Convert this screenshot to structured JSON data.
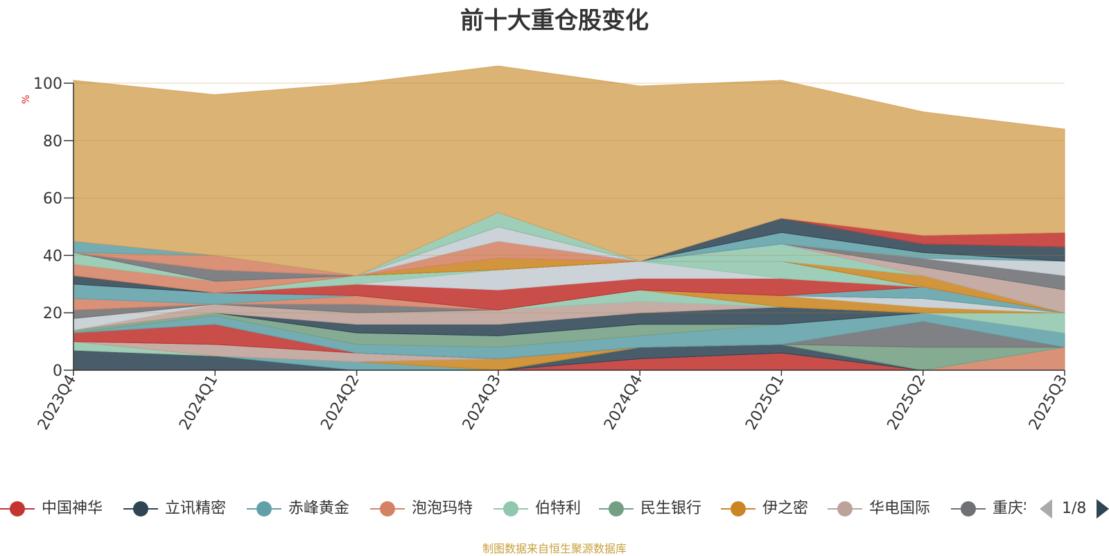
{
  "title": "前十大重仓股变化",
  "source": "制图数据来自恒生聚源数据库",
  "pager": {
    "label": "1/8"
  },
  "chart_data": {
    "type": "area",
    "stacked": true,
    "title": "前十大重仓股变化",
    "ylabel": "%",
    "ylim": [
      0,
      100
    ],
    "yticks": [
      "0",
      "20",
      "40",
      "60",
      "80",
      "100"
    ],
    "categories": [
      "2023Q4",
      "2024Q1",
      "2024Q2",
      "2024Q3",
      "2024Q4",
      "2025Q1",
      "2025Q2",
      "2025Q3"
    ],
    "grid": true,
    "legend_position": "bottom",
    "legend_visible": [
      "中国神华",
      "立讯精密",
      "赤峰黄金",
      "泡泡玛特",
      "伯特利",
      "民生银行",
      "伊之密",
      "华电国际",
      "重庆农商行"
    ],
    "series": [
      {
        "name": "中国神华",
        "color": "#c23531",
        "values": [
          0,
          0,
          0,
          0,
          4,
          6,
          0,
          0
        ]
      },
      {
        "name": "立讯精密",
        "color": "#2f4554",
        "values": [
          7,
          5,
          0,
          0,
          4,
          3,
          0,
          0
        ]
      },
      {
        "name": "赤峰黄金",
        "color": "#61a0a8",
        "values": [
          0,
          0,
          3,
          0,
          0,
          0,
          0,
          0
        ]
      },
      {
        "name": "泡泡玛特",
        "color": "#d48265",
        "values": [
          0,
          0,
          0,
          0,
          0,
          0,
          0,
          8
        ]
      },
      {
        "name": "伯特利",
        "color": "#91c7ae",
        "values": [
          3,
          0,
          0,
          0,
          0,
          0,
          0,
          0
        ]
      },
      {
        "name": "民生银行",
        "color": "#749f83",
        "values": [
          0,
          0,
          0,
          0,
          0,
          0,
          8,
          0
        ]
      },
      {
        "name": "伊之密",
        "color": "#ca8622",
        "values": [
          0,
          0,
          0,
          4,
          0,
          0,
          0,
          0
        ]
      },
      {
        "name": "华电国际",
        "color": "#bda29a",
        "values": [
          0,
          4,
          3,
          0,
          0,
          0,
          0,
          0
        ]
      },
      {
        "name": "重庆农商行",
        "color": "#6e7074",
        "values": [
          0,
          0,
          0,
          0,
          0,
          0,
          9,
          0
        ]
      },
      {
        "name": "",
        "color": "#c23531",
        "values": [
          3,
          7,
          0,
          0,
          0,
          0,
          0,
          0
        ]
      },
      {
        "name": "",
        "color": "#61a0a8",
        "values": [
          0,
          3,
          3,
          4,
          4,
          7,
          3,
          5
        ]
      },
      {
        "name": "",
        "color": "#749f83",
        "values": [
          1,
          1,
          4,
          4,
          4,
          0,
          0,
          0
        ]
      },
      {
        "name": "",
        "color": "#2f4554",
        "values": [
          0,
          0,
          3,
          4,
          4,
          6,
          0,
          0
        ]
      },
      {
        "name": "",
        "color": "#bda29a",
        "values": [
          0,
          3,
          4,
          5,
          4,
          0,
          0,
          0
        ]
      },
      {
        "name": "",
        "color": "#91c7ae",
        "values": [
          0,
          0,
          0,
          0,
          4,
          0,
          0,
          7
        ]
      },
      {
        "name": "",
        "color": "#ca8622",
        "values": [
          0,
          0,
          0,
          0,
          0,
          4,
          2,
          0
        ]
      },
      {
        "name": "",
        "color": "#c4ccd3",
        "values": [
          4,
          0,
          0,
          0,
          0,
          0,
          3,
          0
        ]
      },
      {
        "name": "",
        "color": "#6e7074",
        "values": [
          3,
          0,
          3,
          0,
          0,
          0,
          0,
          0
        ]
      },
      {
        "name": "",
        "color": "#d48265",
        "values": [
          4,
          0,
          3,
          0,
          0,
          0,
          0,
          0
        ]
      },
      {
        "name": "",
        "color": "#61a0a8",
        "values": [
          5,
          4,
          0,
          0,
          0,
          0,
          4,
          0
        ]
      },
      {
        "name": "",
        "color": "#c23531",
        "values": [
          0,
          0,
          4,
          7,
          4,
          6,
          0,
          0
        ]
      },
      {
        "name": "",
        "color": "#c4ccd3",
        "values": [
          0,
          0,
          0,
          7,
          6,
          0,
          0,
          0
        ]
      },
      {
        "name": "",
        "color": "#91c7ae",
        "values": [
          0,
          0,
          3,
          0,
          0,
          6,
          0,
          0
        ]
      },
      {
        "name": "",
        "color": "#2f4554",
        "values": [
          3,
          0,
          0,
          0,
          0,
          0,
          0,
          0
        ]
      },
      {
        "name": "",
        "color": "#ca8622",
        "values": [
          0,
          0,
          0,
          4,
          0,
          0,
          4,
          0
        ]
      },
      {
        "name": "",
        "color": "#d48265",
        "values": [
          4,
          4,
          0,
          6,
          0,
          0,
          0,
          0
        ]
      },
      {
        "name": "",
        "color": "#91c7ae",
        "values": [
          4,
          0,
          0,
          0,
          0,
          6,
          0,
          0
        ]
      },
      {
        "name": "",
        "color": "#bda29a",
        "values": [
          0,
          0,
          0,
          0,
          0,
          0,
          3,
          8
        ]
      },
      {
        "name": "",
        "color": "#6e7074",
        "values": [
          0,
          4,
          0,
          0,
          0,
          0,
          3,
          5
        ]
      },
      {
        "name": "",
        "color": "#c4ccd3",
        "values": [
          0,
          0,
          0,
          5,
          0,
          0,
          0,
          5
        ]
      },
      {
        "name": "",
        "color": "#d48265",
        "values": [
          0,
          5,
          0,
          0,
          0,
          0,
          0,
          0
        ]
      },
      {
        "name": "",
        "color": "#61a0a8",
        "values": [
          4,
          0,
          0,
          0,
          0,
          4,
          2,
          0
        ]
      },
      {
        "name": "",
        "color": "#2f4554",
        "values": [
          0,
          0,
          0,
          0,
          0,
          5,
          3,
          5
        ]
      },
      {
        "name": "",
        "color": "#91c7ae",
        "values": [
          0,
          0,
          0,
          5,
          0,
          0,
          0,
          0
        ]
      },
      {
        "name": "",
        "color": "#c23531",
        "values": [
          0,
          0,
          0,
          0,
          0,
          0,
          3,
          5
        ]
      },
      {
        "name": "",
        "color": "#d6a862",
        "values": [
          56,
          56,
          67,
          51,
          61,
          48,
          43,
          36
        ]
      }
    ]
  }
}
